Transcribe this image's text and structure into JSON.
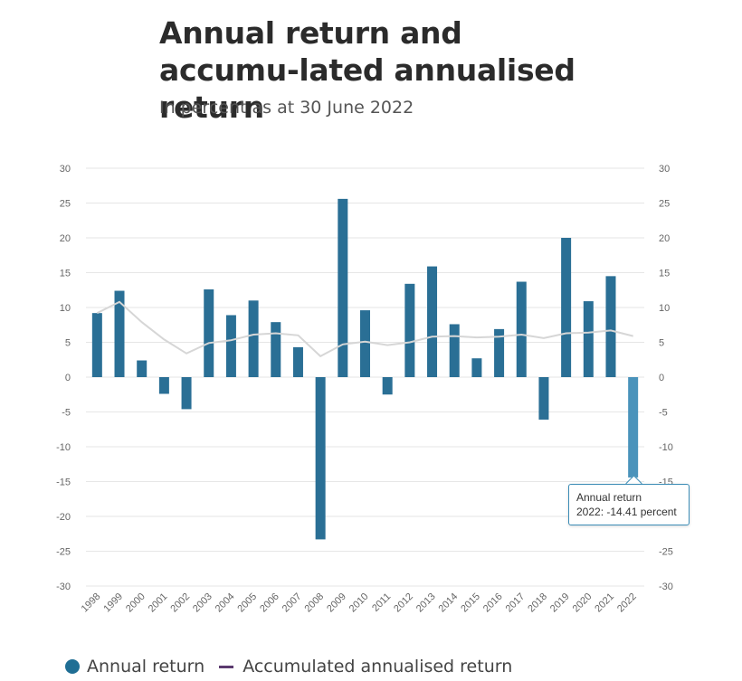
{
  "chart_data": {
    "type": "bar",
    "title": "Annual return and accumu-lated annualised return",
    "subtitle": "In percent as at 30 June 2022",
    "categories": [
      "1998",
      "1999",
      "2000",
      "2001",
      "2002",
      "2003",
      "2004",
      "2005",
      "2006",
      "2007",
      "2008",
      "2009",
      "2010",
      "2011",
      "2012",
      "2013",
      "2014",
      "2015",
      "2016",
      "2017",
      "2018",
      "2019",
      "2020",
      "2021",
      "2022"
    ],
    "series": [
      {
        "name": "Annual return",
        "type": "bar",
        "color": "#2a6f95",
        "values": [
          9.2,
          12.4,
          2.4,
          -2.4,
          -4.6,
          12.6,
          8.9,
          11.0,
          7.9,
          4.3,
          -23.3,
          25.6,
          9.6,
          -2.5,
          13.4,
          15.9,
          7.6,
          2.7,
          6.9,
          13.7,
          -6.1,
          20.0,
          10.9,
          14.5,
          -14.41
        ]
      },
      {
        "name": "Accumulated annualised return",
        "type": "line",
        "color": "#5b3a6f",
        "values": [
          9.2,
          10.8,
          7.9,
          5.4,
          3.4,
          4.9,
          5.3,
          6.1,
          6.3,
          6.0,
          3.0,
          4.7,
          5.1,
          4.6,
          5.0,
          5.8,
          5.9,
          5.7,
          5.8,
          6.1,
          5.6,
          6.3,
          6.4,
          6.7,
          5.9
        ]
      }
    ],
    "ylim": [
      -30,
      30
    ],
    "yticks": [
      "30",
      "25",
      "20",
      "15",
      "10",
      "5",
      "0",
      "-5",
      "-10",
      "-15",
      "-20",
      "-25",
      "-30"
    ],
    "ytick_values": [
      30,
      25,
      20,
      15,
      10,
      5,
      0,
      -5,
      -10,
      -15,
      -20,
      -25,
      -30
    ],
    "grid": true,
    "legend": "bottom-left"
  },
  "tooltip": {
    "title": "Annual return",
    "text": "2022: -14.41 percent"
  },
  "legend": {
    "items": [
      {
        "label": "Annual return"
      },
      {
        "label": "Accumulated annualised return"
      }
    ]
  },
  "colors": {
    "bar": "#2a6f95",
    "bar_highlight": "#4a93bb",
    "accumulated_line_in_plot": "#d6d6d6",
    "legend_line": "#5b3a6f",
    "grid": "#e6e6e6"
  }
}
